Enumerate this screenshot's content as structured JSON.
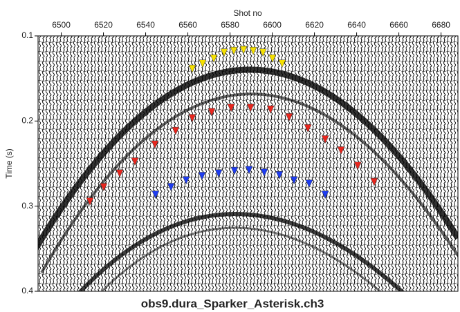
{
  "chart_data": {
    "type": "scatter",
    "title": "obs9.dura_Sparker_Asterisk.ch3",
    "x_label": "Shot no",
    "y_label": "Time (s)",
    "xlim": [
      6489,
      6688
    ],
    "xticks": [
      6500,
      6520,
      6540,
      6560,
      6580,
      6600,
      6620,
      6640,
      6660,
      6680
    ],
    "ylim": [
      0.1,
      0.4
    ],
    "yticks": [
      0.1,
      0.2,
      0.3,
      0.4
    ],
    "y_inverted": true,
    "x_axis_position": "top",
    "series": [
      {
        "color": "#f5e000",
        "x": [
          6562.1,
          6567.0,
          6572.3,
          6577.2,
          6581.8,
          6586.4,
          6591.0,
          6595.6,
          6600.1,
          6604.7
        ],
        "values": [
          0.139,
          0.133,
          0.127,
          0.12,
          0.118,
          0.117,
          0.118,
          0.12,
          0.127,
          0.133
        ]
      },
      {
        "color": "#e8261e",
        "x": [
          6513.6,
          6520.1,
          6527.7,
          6534.9,
          6544.4,
          6554.2,
          6562.1,
          6571.3,
          6580.5,
          6589.7,
          6599.2,
          6608.0,
          6616.9,
          6625.1,
          6632.6,
          6640.5,
          6648.3
        ],
        "values": [
          0.295,
          0.278,
          0.262,
          0.248,
          0.228,
          0.212,
          0.197,
          0.19,
          0.185,
          0.185,
          0.187,
          0.196,
          0.209,
          0.222,
          0.235,
          0.253,
          0.272
        ]
      },
      {
        "color": "#1e3cf0",
        "x": [
          6544.7,
          6552.0,
          6559.2,
          6566.7,
          6574.6,
          6582.1,
          6589.0,
          6596.2,
          6603.4,
          6610.3,
          6617.5,
          6625.1
        ],
        "values": [
          0.287,
          0.278,
          0.27,
          0.265,
          0.262,
          0.259,
          0.258,
          0.261,
          0.264,
          0.27,
          0.274,
          0.287
        ]
      }
    ]
  }
}
